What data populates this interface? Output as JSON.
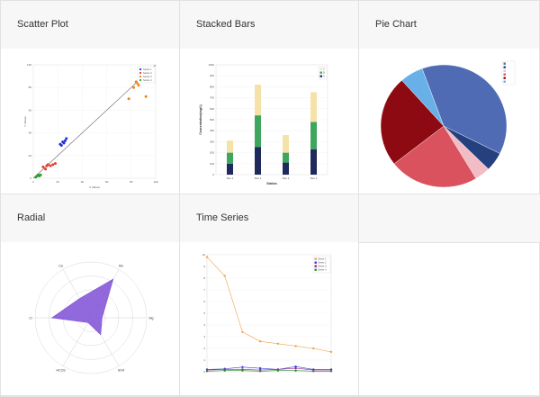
{
  "panels": {
    "scatter": {
      "title": "Scatter Plot"
    },
    "stacked": {
      "title": "Stacked Bars"
    },
    "pie": {
      "title": "Pie Chart"
    },
    "radial": {
      "title": "Radial"
    },
    "timeseries": {
      "title": "Time Series"
    },
    "empty": {
      "title": ""
    }
  },
  "chart_data": [
    {
      "id": "scatter",
      "type": "scatter",
      "xlabel": "X Values",
      "ylabel": "Y Values",
      "xlim": [
        0,
        100
      ],
      "ylim": [
        0,
        100
      ],
      "trendline": {
        "from": [
          0,
          0
        ],
        "to": [
          100,
          100
        ]
      },
      "series": [
        {
          "name": "Series 1",
          "color": "#2330d6",
          "points": [
            [
              22,
              30
            ],
            [
              24,
              32
            ],
            [
              26,
              33
            ],
            [
              25,
              31
            ],
            [
              27,
              35
            ],
            [
              23,
              29
            ]
          ]
        },
        {
          "name": "Series 2",
          "color": "#e83a2e",
          "points": [
            [
              8,
              10
            ],
            [
              10,
              8
            ],
            [
              12,
              12
            ],
            [
              14,
              11
            ],
            [
              16,
              12
            ],
            [
              18,
              13
            ],
            [
              11,
              11
            ]
          ]
        },
        {
          "name": "Series 3",
          "color": "#f2820e",
          "points": [
            [
              78,
              70
            ],
            [
              82,
              80
            ],
            [
              84,
              85
            ],
            [
              85,
              84
            ],
            [
              86,
              82
            ],
            [
              92,
              72
            ]
          ]
        },
        {
          "name": "Series 4",
          "color": "#2f9e35",
          "points": [
            [
              2,
              1
            ],
            [
              3,
              2
            ],
            [
              4,
              3
            ],
            [
              5,
              2
            ],
            [
              6,
              3
            ]
          ]
        }
      ]
    },
    {
      "id": "stacked",
      "type": "bar",
      "stacked": true,
      "xlabel": "Station",
      "ylabel": "Concentration(mg/L)",
      "ylim": [
        0,
        1000
      ],
      "yticks": [
        0,
        100,
        200,
        300,
        400,
        500,
        600,
        700,
        800,
        900,
        1000
      ],
      "categories": [
        "Site 1",
        "Site 2",
        "Site 3",
        "Site 4"
      ],
      "series": [
        {
          "name": "A",
          "color": "#1f2a5c",
          "values": [
            100,
            250,
            110,
            230
          ]
        },
        {
          "name": "B",
          "color": "#3fa660",
          "values": [
            100,
            290,
            90,
            250
          ]
        },
        {
          "name": "C",
          "color": "#f5e2a8",
          "values": [
            110,
            280,
            160,
            270
          ]
        }
      ]
    },
    {
      "id": "pie",
      "type": "pie",
      "slices": [
        {
          "label": "",
          "value": 38,
          "color": "#4e6bb4"
        },
        {
          "label": "",
          "value": 5,
          "color": "#25407f"
        },
        {
          "label": "",
          "value": 4,
          "color": "#f2bcc4"
        },
        {
          "label": "",
          "value": 23,
          "color": "#d9525e"
        },
        {
          "label": "",
          "value": 24,
          "color": "#8e0a12"
        },
        {
          "label": "",
          "value": 6,
          "color": "#6ab0e8"
        }
      ]
    },
    {
      "id": "radial",
      "type": "radar",
      "axes": [
        "Ca",
        "Mn",
        "Mg",
        "SO4",
        "HCO3",
        "Cl"
      ],
      "rmax": 100,
      "rings": 4,
      "series": [
        {
          "name": "",
          "color": "#7f4fd6",
          "values": [
            40,
            80,
            20,
            35,
            10,
            70
          ]
        }
      ]
    },
    {
      "id": "timeseries",
      "type": "line",
      "xlabel": "",
      "ylabel": "",
      "ylim": [
        0,
        10
      ],
      "x": [
        0,
        1,
        2,
        3,
        4,
        5,
        6,
        7
      ],
      "series": [
        {
          "name": "Series 1",
          "color": "#f2a24a",
          "values": [
            9.8,
            8.2,
            3.4,
            2.6,
            2.4,
            2.2,
            2.0,
            1.7
          ]
        },
        {
          "name": "Series 2",
          "color": "#3b3bd6",
          "values": [
            0.2,
            0.25,
            0.4,
            0.3,
            0.2,
            0.45,
            0.2,
            0.2
          ]
        },
        {
          "name": "Series 3",
          "color": "#8b2a8b",
          "values": [
            0.15,
            0.2,
            0.2,
            0.15,
            0.2,
            0.3,
            0.15,
            0.15
          ]
        },
        {
          "name": "Series 4",
          "color": "#3a8a3a",
          "values": [
            0.05,
            0.1,
            0.1,
            0.05,
            0.1,
            0.1,
            0.05,
            0.05
          ]
        }
      ]
    }
  ]
}
